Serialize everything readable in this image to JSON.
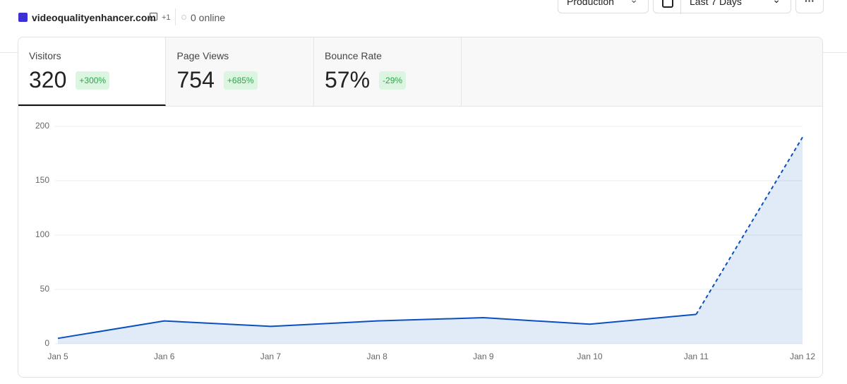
{
  "header": {
    "site": "videoqualityenhancer.com",
    "extra": "+1",
    "online": "0 online",
    "environment": "Production",
    "range": "Last 7 Days"
  },
  "metrics": [
    {
      "label": "Visitors",
      "value": "320",
      "change": "+300%",
      "trend": "up",
      "selected": true
    },
    {
      "label": "Page Views",
      "value": "754",
      "change": "+685%",
      "trend": "up",
      "selected": false
    },
    {
      "label": "Bounce Rate",
      "value": "57%",
      "change": "-29%",
      "trend": "down",
      "selected": false
    }
  ],
  "chart_data": {
    "type": "area",
    "categories": [
      "Jan 5",
      "Jan 6",
      "Jan 7",
      "Jan 8",
      "Jan 9",
      "Jan 10",
      "Jan 11",
      "Jan 12"
    ],
    "series": [
      {
        "name": "Visitors",
        "color": "#0b4fc0",
        "values": [
          5,
          21,
          16,
          21,
          24,
          18,
          27,
          190
        ]
      }
    ],
    "dashed_last_segment": true,
    "ylim": [
      0,
      200
    ],
    "yticks": [
      0,
      50,
      100,
      150,
      200
    ],
    "grid": true
  }
}
